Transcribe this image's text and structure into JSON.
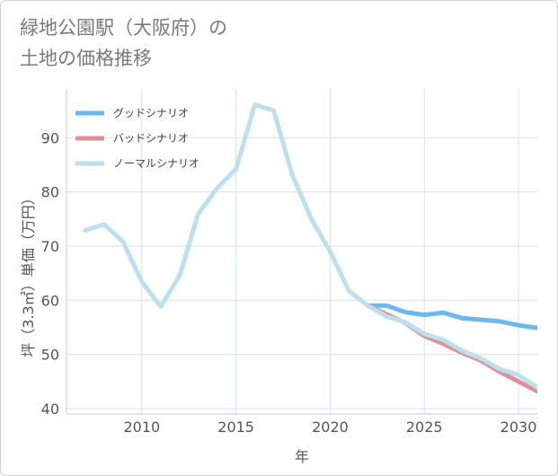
{
  "chart_data": {
    "type": "line",
    "title_line1": "緑地公園駅（大阪府）の",
    "title_line2": "土地の価格推移",
    "xlabel": "年",
    "ylabel": "坪（3.3㎡）単価（万円）",
    "xlim": [
      2006,
      2031
    ],
    "ylim": [
      39,
      99
    ],
    "xticks": [
      2010,
      2015,
      2020,
      2025,
      2030
    ],
    "yticks": [
      40,
      50,
      60,
      70,
      80,
      90
    ],
    "legend_position": "top-left",
    "series": [
      {
        "name": "グッドシナリオ",
        "color": "#6bb8ef",
        "x": [
          2022,
          2023,
          2024,
          2025,
          2026,
          2027,
          2028,
          2029,
          2030,
          2031
        ],
        "values": [
          59.0,
          59.0,
          57.8,
          57.3,
          57.7,
          56.7,
          56.4,
          56.1,
          55.4,
          54.9
        ]
      },
      {
        "name": "バッドシナリオ",
        "color": "#df8f95",
        "x": [
          2022,
          2023,
          2024,
          2025,
          2026,
          2027,
          2028,
          2029,
          2030,
          2031
        ],
        "values": [
          59.0,
          57.4,
          55.8,
          53.4,
          52.0,
          50.3,
          48.9,
          46.8,
          45.0,
          43.2
        ]
      },
      {
        "name": "ノーマルシナリオ",
        "color": "#bde0ef",
        "x": [
          2007,
          2008,
          2009,
          2010,
          2011,
          2012,
          2013,
          2014,
          2015,
          2016,
          2017,
          2018,
          2019,
          2020,
          2021,
          2022,
          2023,
          2024,
          2025,
          2026,
          2027,
          2028,
          2029,
          2030,
          2031
        ],
        "values": [
          72.9,
          74.0,
          70.8,
          63.4,
          58.8,
          64.5,
          76.0,
          80.7,
          84.2,
          96.1,
          95.0,
          83.0,
          75.0,
          69.0,
          61.7,
          59.0,
          57.0,
          55.9,
          53.8,
          52.7,
          50.7,
          49.3,
          47.3,
          46.2,
          43.9
        ]
      }
    ]
  }
}
